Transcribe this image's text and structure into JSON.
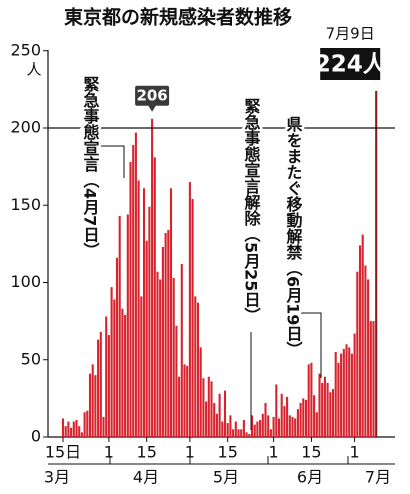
{
  "chart_data": {
    "type": "bar",
    "title": "東京都の新規感染者数推移",
    "y_unit": "人",
    "color": "#d8232e",
    "last_color": "#8a1a1a",
    "ylim": [
      0,
      250
    ],
    "yticks": [
      0,
      50,
      100,
      150,
      200,
      250
    ],
    "reference_line": 200,
    "categories": [
      "15日",
      null,
      null,
      null,
      null,
      null,
      null,
      null,
      null,
      null,
      null,
      null,
      null,
      null,
      null,
      null,
      null,
      "1",
      null,
      null,
      null,
      null,
      null,
      null,
      null,
      null,
      null,
      null,
      null,
      null,
      null,
      "15",
      null,
      null,
      null,
      null,
      null,
      null,
      null,
      null,
      null,
      null,
      null,
      null,
      null,
      null,
      null,
      "1",
      null,
      null,
      null,
      null,
      null,
      null,
      null,
      null,
      null,
      null,
      null,
      null,
      null,
      "15",
      null,
      null,
      null,
      null,
      null,
      null,
      null,
      null,
      null,
      null,
      null,
      null,
      null,
      null,
      null,
      null,
      "1",
      null,
      null,
      null,
      null,
      null,
      null,
      null,
      null,
      null,
      null,
      null,
      null,
      null,
      "15",
      null,
      null,
      null,
      null,
      null,
      null,
      null,
      null,
      null,
      null,
      null,
      null,
      null,
      null,
      null,
      "1",
      null,
      null,
      null,
      null,
      null,
      null,
      null,
      null
    ],
    "months": [
      "3月",
      "4月",
      "5月",
      "6月",
      "7月"
    ],
    "values": [
      12,
      7,
      10,
      6,
      10,
      11,
      7,
      3,
      16,
      17,
      41,
      47,
      40,
      63,
      68,
      13,
      78,
      66,
      97,
      89,
      116,
      143,
      83,
      79,
      144,
      178,
      189,
      197,
      166,
      91,
      161,
      127,
      149,
      206,
      181,
      107,
      102,
      123,
      132,
      134,
      161,
      103,
      72,
      39,
      112,
      47,
      46,
      165,
      154,
      91,
      87,
      58,
      38,
      23,
      39,
      36,
      22,
      15,
      28,
      10,
      30,
      9,
      14,
      5,
      10,
      5,
      5,
      11,
      3,
      2,
      14,
      8,
      10,
      11,
      15,
      22,
      14,
      5,
      13,
      34,
      12,
      28,
      20,
      26,
      14,
      13,
      12,
      18,
      22,
      25,
      24,
      47,
      48,
      27,
      16,
      41,
      35,
      39,
      35,
      29,
      31,
      55,
      48,
      54,
      57,
      60,
      58,
      54,
      67,
      107,
      124,
      131,
      111,
      102,
      75,
      75,
      224
    ],
    "value_labels": [
      null,
      null,
      null,
      null,
      null,
      null,
      null,
      null,
      null,
      null,
      null,
      null,
      null,
      null,
      null,
      null,
      null,
      null,
      null,
      null,
      null,
      null,
      null,
      null,
      null,
      null,
      null,
      null,
      null,
      null,
      null,
      null,
      null,
      null,
      null,
      null,
      null,
      null,
      null,
      null,
      null,
      null,
      null,
      null,
      null,
      null,
      null,
      null,
      null,
      null,
      null,
      null,
      null,
      null,
      null,
      null,
      null,
      null,
      null,
      null,
      null,
      null,
      null,
      null,
      null,
      null,
      null,
      null,
      null,
      null,
      null,
      null,
      null,
      null,
      null,
      null,
      null,
      null,
      null,
      null,
      null,
      null,
      null,
      null,
      null,
      null,
      null,
      null,
      null,
      null,
      null,
      null,
      null,
      null,
      null,
      null,
      null,
      null,
      null,
      null,
      null,
      null,
      null,
      null,
      null,
      null,
      null,
      null,
      null,
      null,
      null,
      null,
      null,
      null,
      null,
      null,
      "224人"
    ],
    "latest_date": "7月9日",
    "annotations": [
      "緊急事態宣言（4月7日）",
      "緊急事態宣言解除（5月25日）",
      "県をまたぐ移動解禁（6月19日）"
    ]
  }
}
